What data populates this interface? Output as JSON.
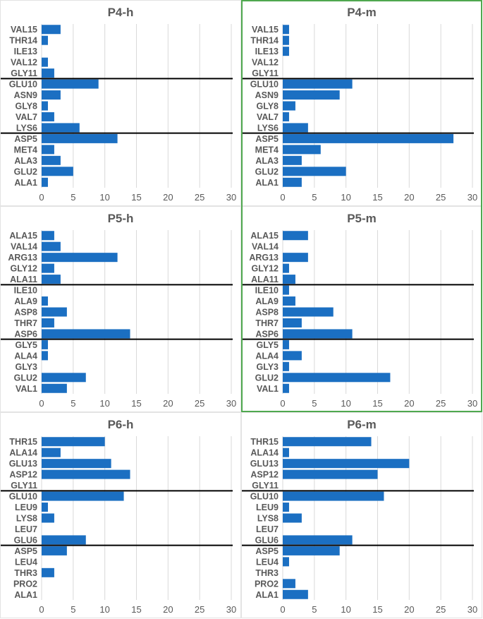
{
  "figure": {
    "highlight_color": "#4fa84f",
    "bar_color": "#1b6fc2",
    "grid_color": "#d9d9d9",
    "separator_color": "#000000",
    "text_color": "#595959"
  },
  "chart_data": [
    {
      "type": "bar",
      "orientation": "horizontal",
      "title": "P4-h",
      "xlim": [
        0,
        30
      ],
      "xticks": [
        0,
        5,
        10,
        15,
        20,
        25,
        30
      ],
      "grid": true,
      "highlighted": false,
      "categories": [
        "VAL15",
        "THR14",
        "ILE13",
        "VAL12",
        "GLY11",
        "GLU10",
        "ASN9",
        "GLY8",
        "VAL7",
        "LYS6",
        "ASP5",
        "MET4",
        "ALA3",
        "GLU2",
        "ALA1"
      ],
      "values": [
        3,
        1,
        0,
        1,
        2,
        9,
        3,
        1,
        2,
        6,
        12,
        2,
        3,
        5,
        1
      ],
      "separator_lines_above": [
        "GLU10",
        "ASP5"
      ]
    },
    {
      "type": "bar",
      "orientation": "horizontal",
      "title": "P4-m",
      "xlim": [
        0,
        30
      ],
      "xticks": [
        0,
        5,
        10,
        15,
        20,
        25,
        30
      ],
      "grid": true,
      "highlighted": true,
      "categories": [
        "VAL15",
        "THR14",
        "ILE13",
        "VAL12",
        "GLY11",
        "GLU10",
        "ASN9",
        "GLY8",
        "VAL7",
        "LYS6",
        "ASP5",
        "MET4",
        "ALA3",
        "GLU2",
        "ALA1"
      ],
      "values": [
        1,
        1,
        1,
        0,
        0,
        11,
        9,
        2,
        1,
        4,
        27,
        6,
        3,
        10,
        3
      ],
      "separator_lines_above": [
        "GLU10",
        "ASP5"
      ]
    },
    {
      "type": "bar",
      "orientation": "horizontal",
      "title": "P5-h",
      "xlim": [
        0,
        30
      ],
      "xticks": [
        0,
        5,
        10,
        15,
        20,
        25,
        30
      ],
      "grid": true,
      "highlighted": false,
      "categories": [
        "ALA15",
        "VAL14",
        "ARG13",
        "GLY12",
        "ALA11",
        "ILE10",
        "ALA9",
        "ASP8",
        "THR7",
        "ASP6",
        "GLY5",
        "ALA4",
        "GLY3",
        "GLU2",
        "VAL1"
      ],
      "values": [
        2,
        3,
        12,
        2,
        3,
        0,
        1,
        4,
        2,
        14,
        1,
        1,
        0,
        7,
        4
      ],
      "separator_lines_above": [
        "ILE10",
        "GLY5"
      ]
    },
    {
      "type": "bar",
      "orientation": "horizontal",
      "title": "P5-m",
      "xlim": [
        0,
        30
      ],
      "xticks": [
        0,
        5,
        10,
        15,
        20,
        25,
        30
      ],
      "grid": true,
      "highlighted": true,
      "categories": [
        "ALA15",
        "VAL14",
        "ARG13",
        "GLY12",
        "ALA11",
        "ILE10",
        "ALA9",
        "ASP8",
        "THR7",
        "ASP6",
        "GLY5",
        "ALA4",
        "GLY3",
        "GLU2",
        "VAL1"
      ],
      "values": [
        4,
        0,
        4,
        1,
        2,
        1,
        2,
        8,
        3,
        11,
        1,
        3,
        1,
        17,
        1
      ],
      "separator_lines_above": [
        "ILE10",
        "GLY5"
      ]
    },
    {
      "type": "bar",
      "orientation": "horizontal",
      "title": "P6-h",
      "xlim": [
        0,
        30
      ],
      "xticks": [
        0,
        5,
        10,
        15,
        20,
        25,
        30
      ],
      "grid": true,
      "highlighted": false,
      "categories": [
        "THR15",
        "ALA14",
        "GLU13",
        "ASP12",
        "GLY11",
        "GLU10",
        "LEU9",
        "LYS8",
        "LEU7",
        "GLU6",
        "ASP5",
        "LEU4",
        "THR3",
        "PRO2",
        "ALA1"
      ],
      "values": [
        10,
        3,
        11,
        14,
        0,
        13,
        1,
        2,
        0,
        7,
        4,
        0,
        2,
        0,
        0
      ],
      "separator_lines_above": [
        "GLU10",
        "ASP5"
      ]
    },
    {
      "type": "bar",
      "orientation": "horizontal",
      "title": "P6-m",
      "xlim": [
        0,
        30
      ],
      "xticks": [
        0,
        5,
        10,
        15,
        20,
        25,
        30
      ],
      "grid": true,
      "highlighted": false,
      "categories": [
        "THR15",
        "ALA14",
        "GLU13",
        "ASP12",
        "GLY11",
        "GLU10",
        "LEU9",
        "LYS8",
        "LEU7",
        "GLU6",
        "ASP5",
        "LEU4",
        "THR3",
        "PRO2",
        "ALA1"
      ],
      "values": [
        14,
        1,
        20,
        15,
        0,
        16,
        1,
        3,
        0,
        11,
        9,
        1,
        0,
        2,
        4
      ],
      "separator_lines_above": [
        "GLU10",
        "ASP5"
      ]
    }
  ]
}
